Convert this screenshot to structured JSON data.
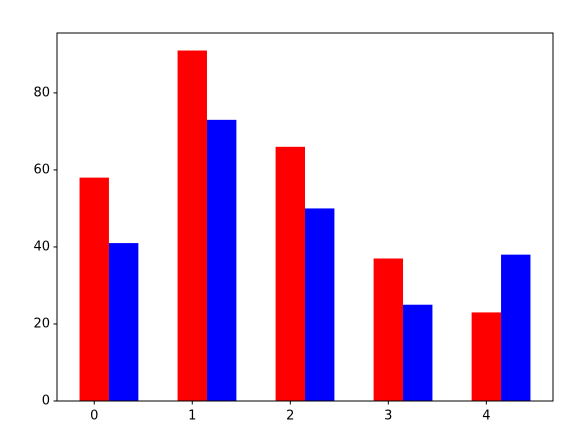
{
  "chart_data": {
    "type": "bar",
    "x": [
      0,
      1,
      2,
      3,
      4
    ],
    "series": [
      {
        "color": "#ff0000",
        "values": [
          58,
          91,
          66,
          37,
          23
        ]
      },
      {
        "color": "#0000ff",
        "values": [
          41,
          73,
          50,
          25,
          38
        ]
      }
    ],
    "xlim": [
      -0.38,
      4.68
    ],
    "xticks": [
      0,
      1,
      2,
      3,
      4
    ],
    "ylim": [
      0,
      95.55
    ],
    "yticks": [
      0,
      20,
      40,
      60,
      80
    ],
    "grid": false
  }
}
